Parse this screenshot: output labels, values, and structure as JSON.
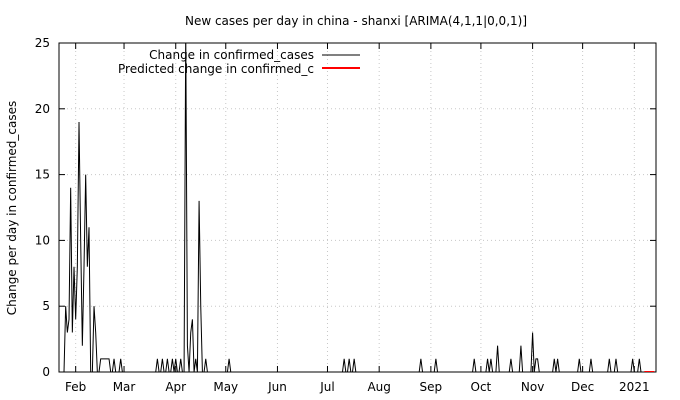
{
  "chart_data": {
    "type": "line",
    "title": "New cases per day in china - shanxi [ARIMA(4,1,1|0,0,1)]",
    "xlabel": "",
    "ylabel": "Change per day in confirmed_cases",
    "ylim": [
      0,
      25
    ],
    "yticks": [
      0,
      5,
      10,
      15,
      20,
      25
    ],
    "xlim": [
      "2020-01-22",
      "2021-01-14"
    ],
    "xticks": [
      {
        "label": "Feb",
        "date": "2020-02-01"
      },
      {
        "label": "Mar",
        "date": "2020-03-01"
      },
      {
        "label": "Apr",
        "date": "2020-04-01"
      },
      {
        "label": "May",
        "date": "2020-05-01"
      },
      {
        "label": "Jun",
        "date": "2020-06-01"
      },
      {
        "label": "Jul",
        "date": "2020-07-01"
      },
      {
        "label": "Aug",
        "date": "2020-08-01"
      },
      {
        "label": "Sep",
        "date": "2020-09-01"
      },
      {
        "label": "Oct",
        "date": "2020-10-01"
      },
      {
        "label": "Nov",
        "date": "2020-11-01"
      },
      {
        "label": "Dec",
        "date": "2020-12-01"
      },
      {
        "label": "2021",
        "date": "2021-01-01"
      }
    ],
    "grid": true,
    "legend_position": "top-left",
    "series": [
      {
        "name": "Change in confirmed_cases",
        "color": "#000000",
        "points": [
          [
            "2020-01-22",
            0
          ],
          [
            "2020-01-23",
            0
          ],
          [
            "2020-01-24",
            0
          ],
          [
            "2020-01-25",
            0
          ],
          [
            "2020-01-26",
            5
          ],
          [
            "2020-01-27",
            3
          ],
          [
            "2020-01-28",
            4
          ],
          [
            "2020-01-29",
            14
          ],
          [
            "2020-01-30",
            3
          ],
          [
            "2020-01-31",
            8
          ],
          [
            "2020-02-01",
            4
          ],
          [
            "2020-02-02",
            8
          ],
          [
            "2020-02-03",
            19
          ],
          [
            "2020-02-04",
            10
          ],
          [
            "2020-02-05",
            2
          ],
          [
            "2020-02-06",
            8
          ],
          [
            "2020-02-07",
            15
          ],
          [
            "2020-02-08",
            8
          ],
          [
            "2020-02-09",
            11
          ],
          [
            "2020-02-10",
            0
          ],
          [
            "2020-02-11",
            0
          ],
          [
            "2020-02-12",
            5
          ],
          [
            "2020-02-13",
            3
          ],
          [
            "2020-02-14",
            0
          ],
          [
            "2020-02-15",
            0
          ],
          [
            "2020-02-16",
            1
          ],
          [
            "2020-02-17",
            1
          ],
          [
            "2020-02-18",
            1
          ],
          [
            "2020-02-19",
            1
          ],
          [
            "2020-02-20",
            1
          ],
          [
            "2020-02-21",
            1
          ],
          [
            "2020-02-22",
            0
          ],
          [
            "2020-02-23",
            0
          ],
          [
            "2020-02-24",
            1
          ],
          [
            "2020-02-25",
            0
          ],
          [
            "2020-02-26",
            0
          ],
          [
            "2020-02-27",
            0
          ],
          [
            "2020-02-28",
            1
          ],
          [
            "2020-02-29",
            0
          ],
          [
            "2020-03-01",
            0
          ],
          [
            "2020-03-20",
            0
          ],
          [
            "2020-03-21",
            1
          ],
          [
            "2020-03-22",
            0
          ],
          [
            "2020-03-23",
            0
          ],
          [
            "2020-03-24",
            1
          ],
          [
            "2020-03-25",
            0
          ],
          [
            "2020-03-26",
            0
          ],
          [
            "2020-03-27",
            1
          ],
          [
            "2020-03-28",
            0
          ],
          [
            "2020-03-29",
            0
          ],
          [
            "2020-03-30",
            1
          ],
          [
            "2020-03-31",
            0
          ],
          [
            "2020-04-01",
            1
          ],
          [
            "2020-04-02",
            0
          ],
          [
            "2020-04-03",
            0
          ],
          [
            "2020-04-04",
            1
          ],
          [
            "2020-04-05",
            0
          ],
          [
            "2020-04-06",
            0
          ],
          [
            "2020-04-07",
            26
          ],
          [
            "2020-04-08",
            2
          ],
          [
            "2020-04-09",
            0
          ],
          [
            "2020-04-10",
            3
          ],
          [
            "2020-04-11",
            4
          ],
          [
            "2020-04-12",
            0
          ],
          [
            "2020-04-13",
            1
          ],
          [
            "2020-04-14",
            0
          ],
          [
            "2020-04-15",
            13
          ],
          [
            "2020-04-16",
            5
          ],
          [
            "2020-04-17",
            0
          ],
          [
            "2020-04-18",
            0
          ],
          [
            "2020-04-19",
            1
          ],
          [
            "2020-04-20",
            0
          ],
          [
            "2020-04-21",
            0
          ],
          [
            "2020-04-22",
            0
          ],
          [
            "2020-04-23",
            0
          ],
          [
            "2020-04-24",
            0
          ],
          [
            "2020-04-25",
            0
          ],
          [
            "2020-04-26",
            0
          ],
          [
            "2020-04-27",
            0
          ],
          [
            "2020-04-28",
            0
          ],
          [
            "2020-04-29",
            0
          ],
          [
            "2020-04-30",
            0
          ],
          [
            "2020-05-01",
            0
          ],
          [
            "2020-05-02",
            0
          ],
          [
            "2020-05-03",
            1
          ],
          [
            "2020-05-04",
            0
          ],
          [
            "2020-05-05",
            0
          ],
          [
            "2020-07-10",
            0
          ],
          [
            "2020-07-11",
            1
          ],
          [
            "2020-07-12",
            0
          ],
          [
            "2020-07-13",
            0
          ],
          [
            "2020-07-14",
            1
          ],
          [
            "2020-07-15",
            0
          ],
          [
            "2020-07-16",
            0
          ],
          [
            "2020-07-17",
            1
          ],
          [
            "2020-07-18",
            0
          ],
          [
            "2020-08-25",
            0
          ],
          [
            "2020-08-26",
            1
          ],
          [
            "2020-08-27",
            0
          ],
          [
            "2020-09-03",
            0
          ],
          [
            "2020-09-04",
            1
          ],
          [
            "2020-09-05",
            0
          ],
          [
            "2020-09-26",
            0
          ],
          [
            "2020-09-27",
            1
          ],
          [
            "2020-09-28",
            0
          ],
          [
            "2020-10-04",
            0
          ],
          [
            "2020-10-05",
            1
          ],
          [
            "2020-10-06",
            0
          ],
          [
            "2020-10-07",
            1
          ],
          [
            "2020-10-08",
            0
          ],
          [
            "2020-10-10",
            0
          ],
          [
            "2020-10-11",
            2
          ],
          [
            "2020-10-12",
            0
          ],
          [
            "2020-10-18",
            0
          ],
          [
            "2020-10-19",
            1
          ],
          [
            "2020-10-20",
            0
          ],
          [
            "2020-10-24",
            0
          ],
          [
            "2020-10-25",
            2
          ],
          [
            "2020-10-26",
            0
          ],
          [
            "2020-10-31",
            0
          ],
          [
            "2020-11-01",
            3
          ],
          [
            "2020-11-02",
            0
          ],
          [
            "2020-11-03",
            1
          ],
          [
            "2020-11-04",
            1
          ],
          [
            "2020-11-05",
            0
          ],
          [
            "2020-11-13",
            0
          ],
          [
            "2020-11-14",
            1
          ],
          [
            "2020-11-15",
            0
          ],
          [
            "2020-11-16",
            1
          ],
          [
            "2020-11-17",
            0
          ],
          [
            "2020-11-28",
            0
          ],
          [
            "2020-11-29",
            1
          ],
          [
            "2020-11-30",
            0
          ],
          [
            "2020-12-05",
            0
          ],
          [
            "2020-12-06",
            1
          ],
          [
            "2020-12-07",
            0
          ],
          [
            "2020-12-16",
            0
          ],
          [
            "2020-12-17",
            1
          ],
          [
            "2020-12-18",
            0
          ],
          [
            "2020-12-20",
            0
          ],
          [
            "2020-12-21",
            1
          ],
          [
            "2020-12-22",
            0
          ],
          [
            "2020-12-30",
            0
          ],
          [
            "2020-12-31",
            1
          ],
          [
            "2021-01-01",
            0
          ],
          [
            "2021-01-03",
            0
          ],
          [
            "2021-01-04",
            1
          ],
          [
            "2021-01-05",
            0
          ],
          [
            "2021-01-07",
            0
          ]
        ]
      },
      {
        "name": "Predicted change in confirmed_c",
        "color": "#ff0000",
        "points": [
          [
            "2021-01-07",
            0
          ],
          [
            "2021-01-08",
            0
          ],
          [
            "2021-01-09",
            0
          ],
          [
            "2021-01-10",
            0
          ],
          [
            "2021-01-11",
            0
          ],
          [
            "2021-01-12",
            0
          ],
          [
            "2021-01-13",
            0
          ]
        ]
      }
    ]
  }
}
